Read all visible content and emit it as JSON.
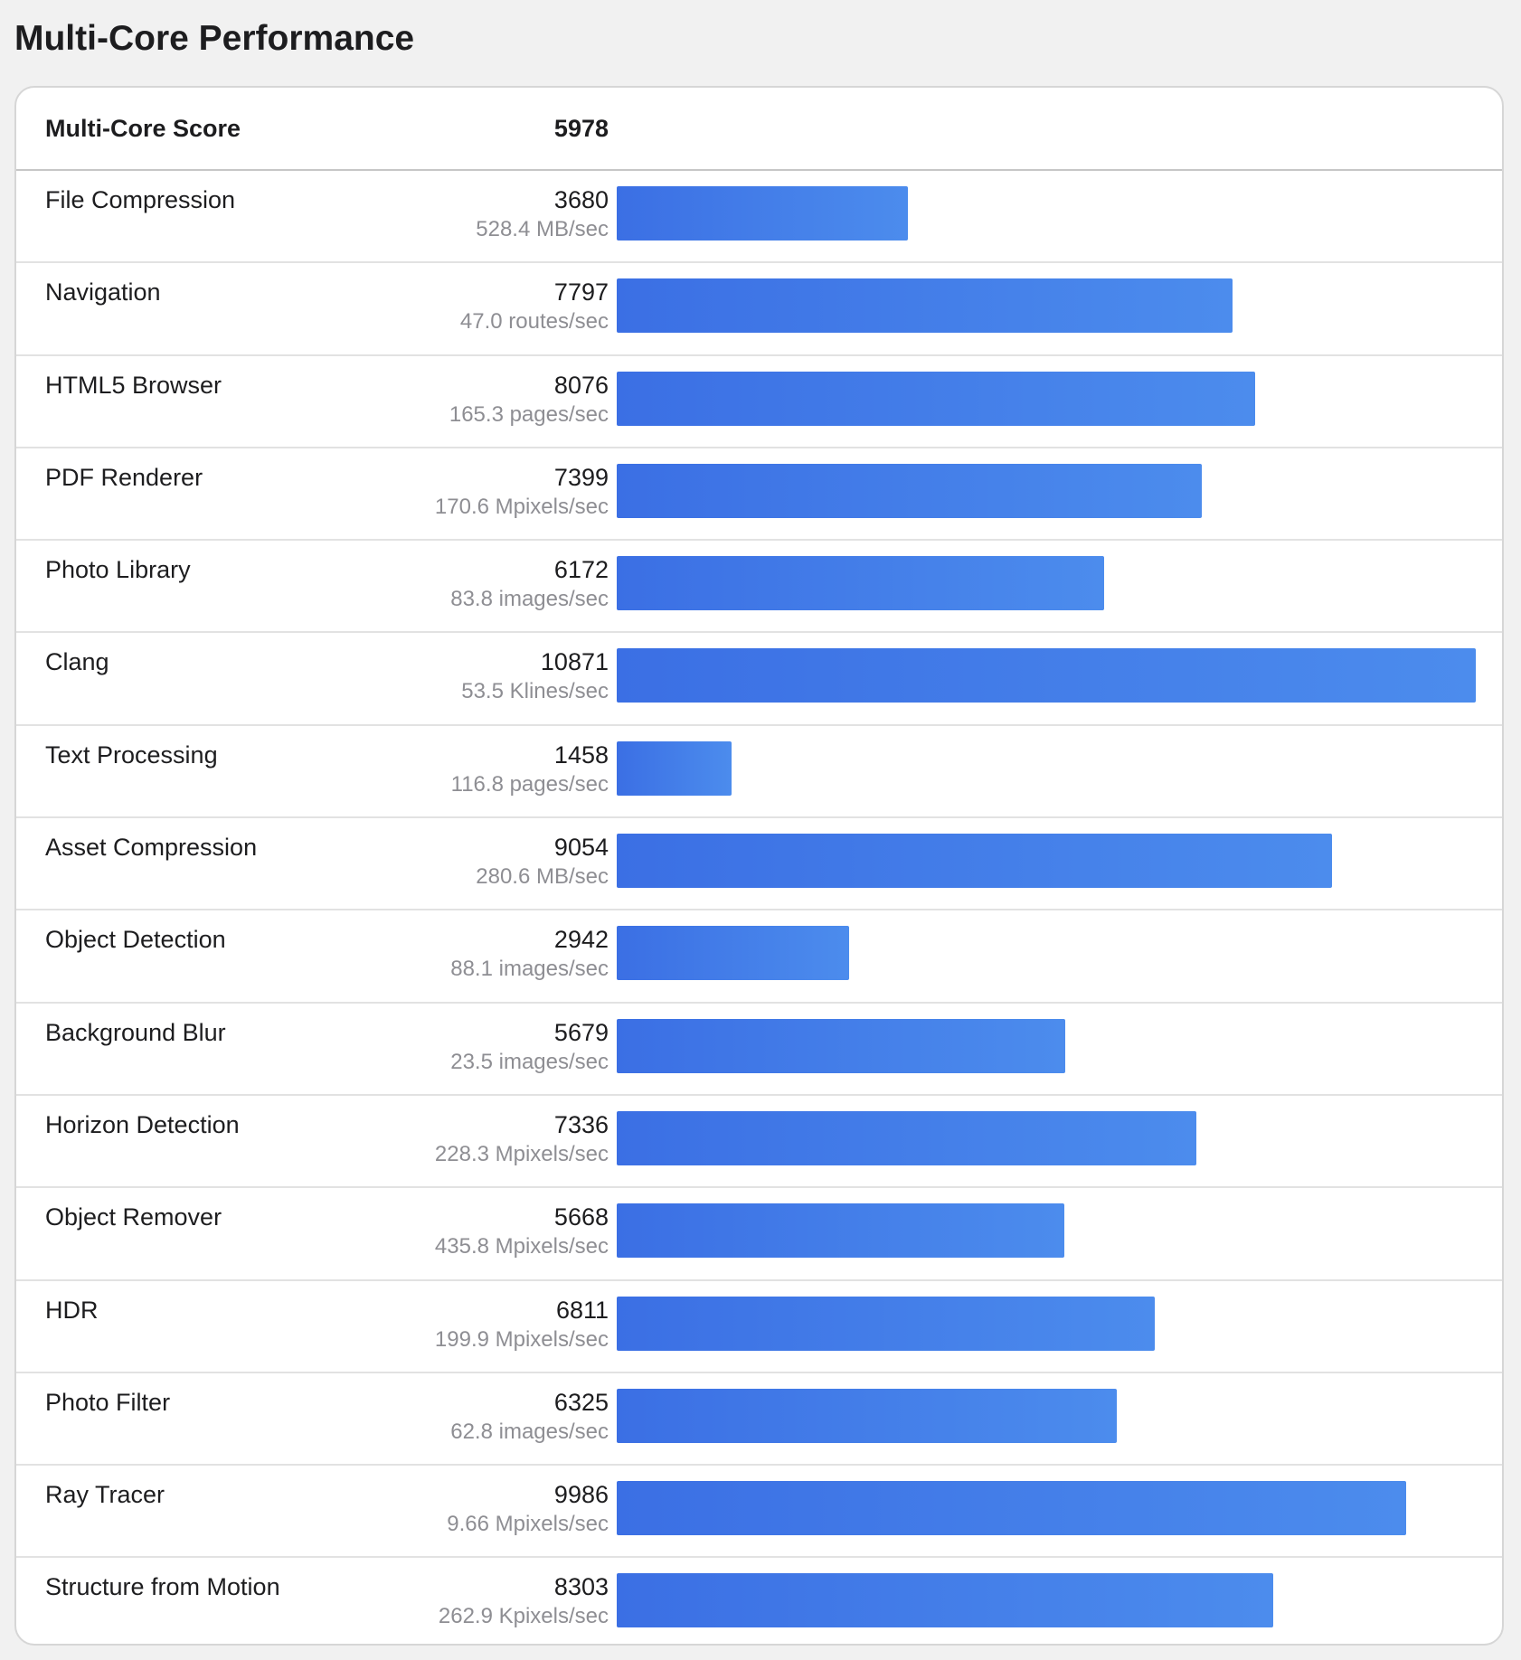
{
  "title": "Multi-Core Performance",
  "summary": {
    "label": "Multi-Core Score",
    "value": "5978"
  },
  "colors": {
    "bar_start": "#3b6fe4",
    "bar_end": "#4c8ced",
    "secondary_text": "#8e8e93"
  },
  "max_score": 10871,
  "benchmarks": [
    {
      "name": "File Compression",
      "score": "3680",
      "score_value": 3680,
      "rate": "528.4 MB/sec"
    },
    {
      "name": "Navigation",
      "score": "7797",
      "score_value": 7797,
      "rate": "47.0 routes/sec"
    },
    {
      "name": "HTML5 Browser",
      "score": "8076",
      "score_value": 8076,
      "rate": "165.3 pages/sec"
    },
    {
      "name": "PDF Renderer",
      "score": "7399",
      "score_value": 7399,
      "rate": "170.6 Mpixels/sec"
    },
    {
      "name": "Photo Library",
      "score": "6172",
      "score_value": 6172,
      "rate": "83.8 images/sec"
    },
    {
      "name": "Clang",
      "score": "10871",
      "score_value": 10871,
      "rate": "53.5 Klines/sec"
    },
    {
      "name": "Text Processing",
      "score": "1458",
      "score_value": 1458,
      "rate": "116.8 pages/sec"
    },
    {
      "name": "Asset Compression",
      "score": "9054",
      "score_value": 9054,
      "rate": "280.6 MB/sec"
    },
    {
      "name": "Object Detection",
      "score": "2942",
      "score_value": 2942,
      "rate": "88.1 images/sec"
    },
    {
      "name": "Background Blur",
      "score": "5679",
      "score_value": 5679,
      "rate": "23.5 images/sec"
    },
    {
      "name": "Horizon Detection",
      "score": "7336",
      "score_value": 7336,
      "rate": "228.3 Mpixels/sec"
    },
    {
      "name": "Object Remover",
      "score": "5668",
      "score_value": 5668,
      "rate": "435.8 Mpixels/sec"
    },
    {
      "name": "HDR",
      "score": "6811",
      "score_value": 6811,
      "rate": "199.9 Mpixels/sec"
    },
    {
      "name": "Photo Filter",
      "score": "6325",
      "score_value": 6325,
      "rate": "62.8 images/sec"
    },
    {
      "name": "Ray Tracer",
      "score": "9986",
      "score_value": 9986,
      "rate": "9.66 Mpixels/sec"
    },
    {
      "name": "Structure from Motion",
      "score": "8303",
      "score_value": 8303,
      "rate": "262.9 Kpixels/sec"
    }
  ]
}
